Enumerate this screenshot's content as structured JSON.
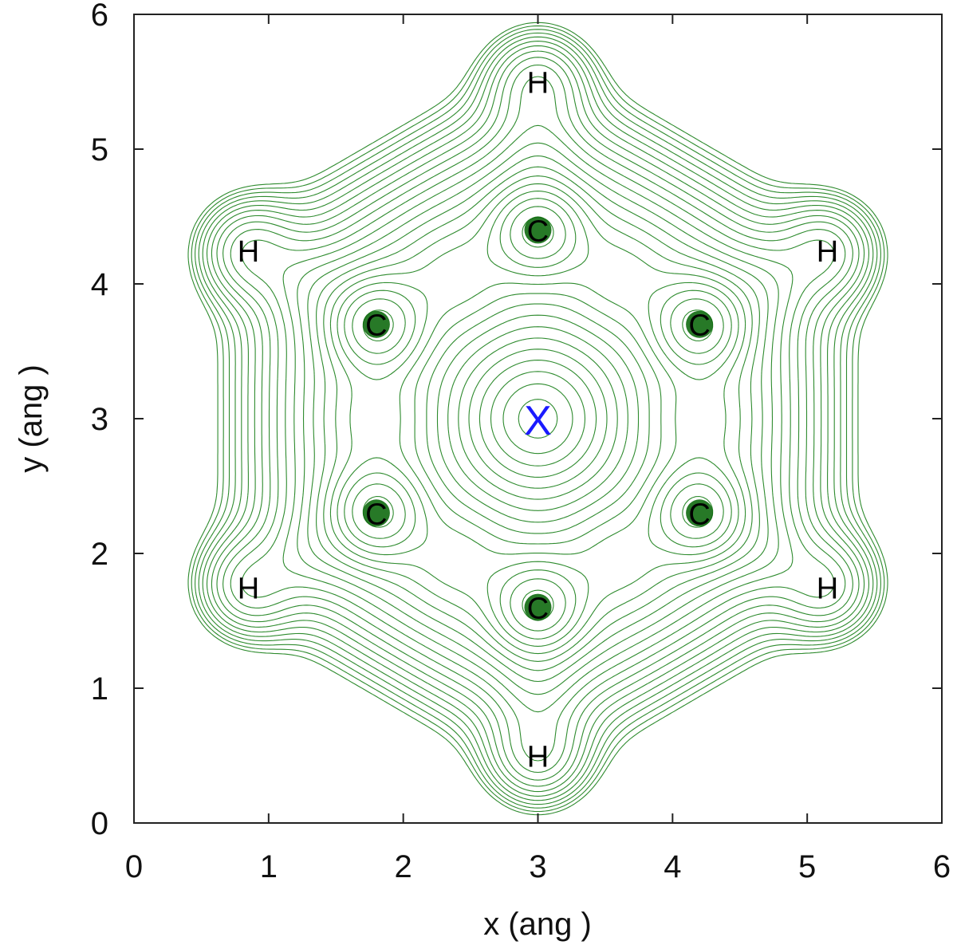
{
  "chart_data": {
    "type": "contour",
    "title": "",
    "xlabel": "x (ang )",
    "ylabel": "y (ang )",
    "xlim": [
      0,
      6
    ],
    "ylim": [
      0,
      6
    ],
    "xticks": [
      "0",
      "1",
      "2",
      "3",
      "4",
      "5",
      "6"
    ],
    "yticks": [
      "0",
      "1",
      "2",
      "3",
      "4",
      "5",
      "6"
    ],
    "grid": false,
    "contour_color": "#2e8b2e",
    "atom_fill_color": "#0f6a0f",
    "atoms": [
      {
        "label": "C",
        "x": 3.0,
        "y": 4.4
      },
      {
        "label": "C",
        "x": 4.2,
        "y": 3.7
      },
      {
        "label": "C",
        "x": 4.2,
        "y": 2.3
      },
      {
        "label": "C",
        "x": 3.0,
        "y": 1.6
      },
      {
        "label": "C",
        "x": 1.8,
        "y": 2.3
      },
      {
        "label": "C",
        "x": 1.8,
        "y": 3.7
      },
      {
        "label": "H",
        "x": 3.0,
        "y": 5.5
      },
      {
        "label": "H",
        "x": 5.15,
        "y": 4.25
      },
      {
        "label": "H",
        "x": 5.15,
        "y": 1.75
      },
      {
        "label": "H",
        "x": 3.0,
        "y": 0.5
      },
      {
        "label": "H",
        "x": 0.85,
        "y": 1.75
      },
      {
        "label": "H",
        "x": 0.85,
        "y": 4.25
      }
    ],
    "center_marker": {
      "label": "X",
      "x": 3.0,
      "y": 3.0,
      "color": "#1a1aff"
    }
  }
}
